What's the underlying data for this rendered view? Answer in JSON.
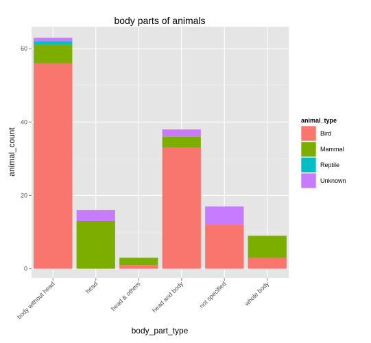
{
  "chart_data": {
    "type": "bar",
    "stacked": true,
    "title": "body parts of animals",
    "xlabel": "body_part_type",
    "ylabel": "animal_count",
    "categories": [
      "body without head",
      "head",
      "head & others",
      "head and body",
      "not specified",
      "whole body"
    ],
    "series": [
      {
        "name": "Bird",
        "color": "#F8766D",
        "values": [
          56,
          0,
          1,
          33,
          12,
          3
        ]
      },
      {
        "name": "Mammal",
        "color": "#7CAE00",
        "values": [
          5,
          13,
          2,
          3,
          0,
          6
        ]
      },
      {
        "name": "Reptile",
        "color": "#00BFC4",
        "values": [
          1,
          0,
          0,
          0,
          0,
          0
        ]
      },
      {
        "name": "Unknown",
        "color": "#C77CFF",
        "values": [
          1,
          3,
          0,
          2,
          5,
          0
        ]
      }
    ],
    "ylim": [
      -2.5,
      66
    ],
    "yticks": [
      0,
      20,
      40,
      60
    ],
    "legend": {
      "title": "animal_type",
      "position": "right"
    },
    "grid": true
  }
}
